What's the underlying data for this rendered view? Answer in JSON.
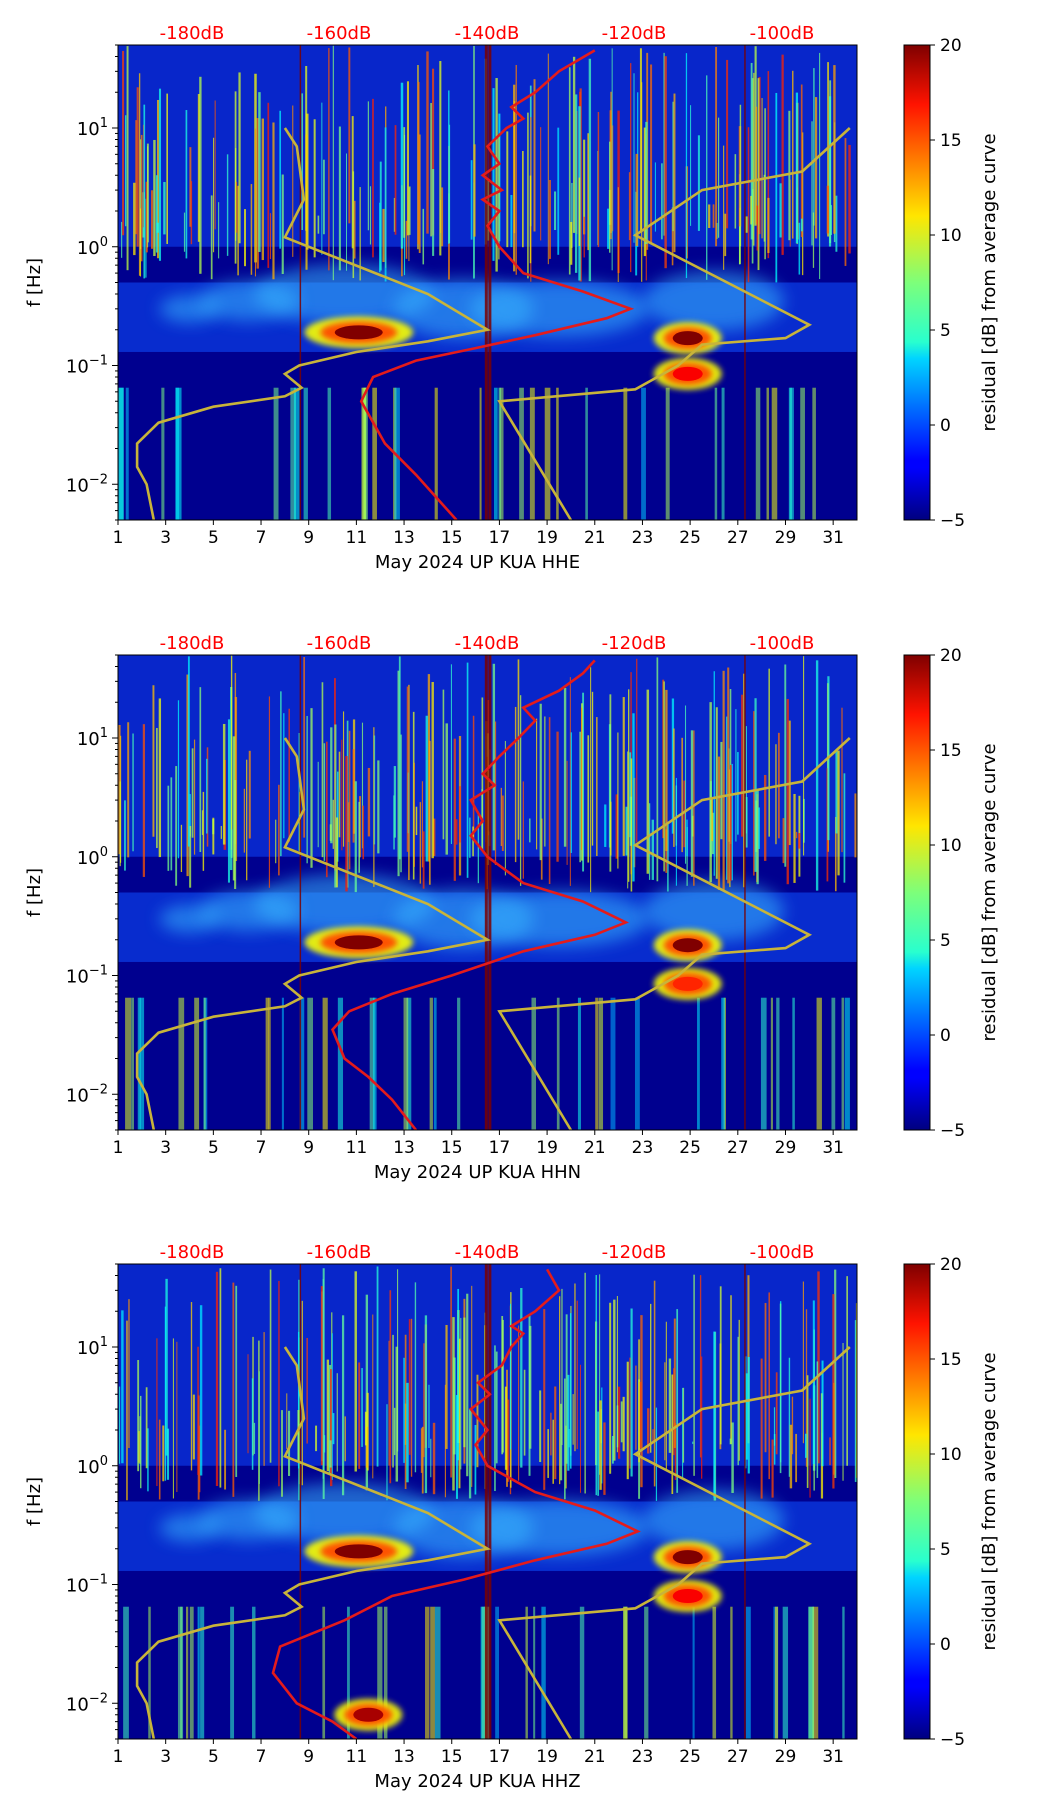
{
  "colorbar": {
    "label": "residual [dB] from average curve",
    "ticks": [
      "20",
      "15",
      "10",
      "5",
      "0",
      "−5"
    ],
    "range": [
      -5,
      20
    ],
    "colormap": "jet"
  },
  "top_axis_labels": [
    "-180dB",
    "-160dB",
    "-140dB",
    "-120dB",
    "-100dB"
  ],
  "x_ticks": [
    "1",
    "3",
    "5",
    "7",
    "9",
    "11",
    "13",
    "15",
    "17",
    "19",
    "21",
    "23",
    "25",
    "27",
    "29",
    "31"
  ],
  "y_ticks": [
    {
      "base": "10",
      "exp": "1"
    },
    {
      "base": "10",
      "exp": "0"
    },
    {
      "base": "10",
      "exp": "−1"
    },
    {
      "base": "10",
      "exp": "−2"
    }
  ],
  "ylabel": "f [Hz]",
  "colors": {
    "mean_curve": "#e41b1b",
    "model_curve": "#c8b43a",
    "top_labels": "#ff0000"
  },
  "chart_data": [
    {
      "type": "heatmap",
      "xlabel": "May 2024 UP KUA  HHE",
      "ylabel": "f [Hz]",
      "xlim": [
        1,
        32
      ],
      "ylim": [
        0.005,
        50
      ],
      "yscale": "log",
      "clim": [
        -5,
        20
      ],
      "hotspots": [
        {
          "day": 11.1,
          "freq": 0.19,
          "value": 20
        },
        {
          "day": 24.9,
          "freq": 0.17,
          "value": 20
        },
        {
          "day": 24.9,
          "freq": 0.085,
          "value": 17
        }
      ],
      "mean_curve_points": [
        [
          15.2,
          0.005
        ],
        [
          13.5,
          0.012
        ],
        [
          12.2,
          0.022
        ],
        [
          11.2,
          0.05
        ],
        [
          11.7,
          0.08
        ],
        [
          13.5,
          0.11
        ],
        [
          16.0,
          0.14
        ],
        [
          18.5,
          0.18
        ],
        [
          21.5,
          0.25
        ],
        [
          22.5,
          0.3
        ],
        [
          20.5,
          0.42
        ],
        [
          18.0,
          0.6
        ],
        [
          17.0,
          1.0
        ],
        [
          16.5,
          1.5
        ],
        [
          17.0,
          2.0
        ],
        [
          16.3,
          2.5
        ],
        [
          17.1,
          3.0
        ],
        [
          16.3,
          4.0
        ],
        [
          17.0,
          5.0
        ],
        [
          16.5,
          7.0
        ],
        [
          17.3,
          10.0
        ],
        [
          18.0,
          12.0
        ],
        [
          17.5,
          15.0
        ],
        [
          18.5,
          20.0
        ],
        [
          19.5,
          30.0
        ],
        [
          21.0,
          45.0
        ]
      ],
      "model_curve_a_points": [
        [
          2.5,
          0.005
        ],
        [
          2.2,
          0.01
        ],
        [
          1.8,
          0.014
        ],
        [
          1.8,
          0.022
        ],
        [
          2.7,
          0.033
        ],
        [
          5.0,
          0.045
        ],
        [
          8.0,
          0.055
        ],
        [
          8.7,
          0.065
        ],
        [
          8.0,
          0.085
        ],
        [
          8.6,
          0.1
        ],
        [
          11.0,
          0.13
        ],
        [
          14.0,
          0.16
        ],
        [
          16.5,
          0.2
        ],
        [
          14.0,
          0.4
        ],
        [
          8.0,
          1.2
        ],
        [
          8.8,
          2.5
        ],
        [
          8.5,
          7.0
        ],
        [
          8.0,
          10.0
        ]
      ],
      "model_curve_b_points": [
        [
          20.0,
          0.005
        ],
        [
          17.0,
          0.05
        ],
        [
          22.7,
          0.063
        ],
        [
          24.5,
          0.1
        ],
        [
          25.5,
          0.15
        ],
        [
          29.0,
          0.17
        ],
        [
          30.0,
          0.22
        ],
        [
          22.7,
          1.25
        ],
        [
          25.5,
          3.0
        ],
        [
          29.7,
          4.3
        ],
        [
          31.7,
          10.0
        ]
      ]
    },
    {
      "type": "heatmap",
      "xlabel": "May 2024 UP KUA  HHN",
      "ylabel": "f [Hz]",
      "xlim": [
        1,
        32
      ],
      "ylim": [
        0.005,
        50
      ],
      "yscale": "log",
      "clim": [
        -5,
        20
      ],
      "hotspots": [
        {
          "day": 11.1,
          "freq": 0.19,
          "value": 20
        },
        {
          "day": 24.9,
          "freq": 0.18,
          "value": 20
        },
        {
          "day": 24.9,
          "freq": 0.085,
          "value": 16
        }
      ],
      "mean_curve_points": [
        [
          13.5,
          0.005
        ],
        [
          12.5,
          0.009
        ],
        [
          11.5,
          0.014
        ],
        [
          10.5,
          0.02
        ],
        [
          10.0,
          0.035
        ],
        [
          10.7,
          0.05
        ],
        [
          12.5,
          0.07
        ],
        [
          15.0,
          0.1
        ],
        [
          18.0,
          0.16
        ],
        [
          21.0,
          0.22
        ],
        [
          22.3,
          0.28
        ],
        [
          20.5,
          0.42
        ],
        [
          18.0,
          0.6
        ],
        [
          16.5,
          1.0
        ],
        [
          15.8,
          1.5
        ],
        [
          16.3,
          2.0
        ],
        [
          15.8,
          3.0
        ],
        [
          16.8,
          4.0
        ],
        [
          16.3,
          5.0
        ],
        [
          17.0,
          7.0
        ],
        [
          17.8,
          10.0
        ],
        [
          18.5,
          14.0
        ],
        [
          18.0,
          18.0
        ],
        [
          19.5,
          25.0
        ],
        [
          20.5,
          35.0
        ],
        [
          21.0,
          45.0
        ]
      ],
      "model_curve_a_points": [
        [
          2.5,
          0.005
        ],
        [
          2.2,
          0.01
        ],
        [
          1.8,
          0.014
        ],
        [
          1.8,
          0.022
        ],
        [
          2.7,
          0.033
        ],
        [
          5.0,
          0.045
        ],
        [
          8.0,
          0.055
        ],
        [
          8.7,
          0.065
        ],
        [
          8.0,
          0.085
        ],
        [
          8.6,
          0.1
        ],
        [
          11.0,
          0.13
        ],
        [
          14.0,
          0.16
        ],
        [
          16.5,
          0.2
        ],
        [
          14.0,
          0.4
        ],
        [
          8.0,
          1.2
        ],
        [
          8.8,
          2.5
        ],
        [
          8.5,
          7.0
        ],
        [
          8.0,
          10.0
        ]
      ],
      "model_curve_b_points": [
        [
          20.0,
          0.005
        ],
        [
          17.0,
          0.05
        ],
        [
          22.7,
          0.063
        ],
        [
          24.5,
          0.1
        ],
        [
          25.5,
          0.15
        ],
        [
          29.0,
          0.17
        ],
        [
          30.0,
          0.22
        ],
        [
          22.7,
          1.25
        ],
        [
          25.5,
          3.0
        ],
        [
          29.7,
          4.3
        ],
        [
          31.7,
          10.0
        ]
      ]
    },
    {
      "type": "heatmap",
      "xlabel": "May 2024 UP KUA  HHZ",
      "ylabel": "f [Hz]",
      "xlim": [
        1,
        32
      ],
      "ylim": [
        0.005,
        50
      ],
      "yscale": "log",
      "clim": [
        -5,
        20
      ],
      "hotspots": [
        {
          "day": 11.1,
          "freq": 0.19,
          "value": 20
        },
        {
          "day": 24.9,
          "freq": 0.17,
          "value": 20
        },
        {
          "day": 24.9,
          "freq": 0.08,
          "value": 17
        },
        {
          "day": 11.5,
          "freq": 0.008,
          "value": 19
        }
      ],
      "mean_curve_points": [
        [
          11.0,
          0.005
        ],
        [
          10.0,
          0.007
        ],
        [
          8.5,
          0.01
        ],
        [
          7.5,
          0.018
        ],
        [
          7.8,
          0.03
        ],
        [
          10.5,
          0.05
        ],
        [
          12.5,
          0.08
        ],
        [
          15.5,
          0.11
        ],
        [
          18.5,
          0.16
        ],
        [
          21.5,
          0.22
        ],
        [
          22.8,
          0.28
        ],
        [
          21.0,
          0.42
        ],
        [
          18.5,
          0.6
        ],
        [
          16.5,
          1.0
        ],
        [
          16.0,
          1.5
        ],
        [
          16.5,
          2.0
        ],
        [
          15.8,
          3.0
        ],
        [
          16.6,
          4.0
        ],
        [
          16.1,
          5.0
        ],
        [
          17.1,
          7.0
        ],
        [
          17.5,
          10.0
        ],
        [
          18.0,
          13.0
        ],
        [
          17.5,
          15.0
        ],
        [
          18.5,
          20.0
        ],
        [
          19.5,
          30.0
        ],
        [
          19.0,
          45.0
        ]
      ],
      "model_curve_a_points": [
        [
          2.5,
          0.005
        ],
        [
          2.2,
          0.01
        ],
        [
          1.8,
          0.014
        ],
        [
          1.8,
          0.022
        ],
        [
          2.7,
          0.033
        ],
        [
          5.0,
          0.045
        ],
        [
          8.0,
          0.055
        ],
        [
          8.7,
          0.065
        ],
        [
          8.0,
          0.085
        ],
        [
          8.6,
          0.1
        ],
        [
          11.0,
          0.13
        ],
        [
          14.0,
          0.16
        ],
        [
          16.5,
          0.2
        ],
        [
          14.0,
          0.4
        ],
        [
          8.0,
          1.2
        ],
        [
          8.8,
          2.5
        ],
        [
          8.5,
          7.0
        ],
        [
          8.0,
          10.0
        ]
      ],
      "model_curve_b_points": [
        [
          20.0,
          0.005
        ],
        [
          17.0,
          0.05
        ],
        [
          22.7,
          0.063
        ],
        [
          24.5,
          0.1
        ],
        [
          25.5,
          0.15
        ],
        [
          29.0,
          0.17
        ],
        [
          30.0,
          0.22
        ],
        [
          22.7,
          1.25
        ],
        [
          25.5,
          3.0
        ],
        [
          29.7,
          4.3
        ],
        [
          31.7,
          10.0
        ]
      ]
    }
  ]
}
